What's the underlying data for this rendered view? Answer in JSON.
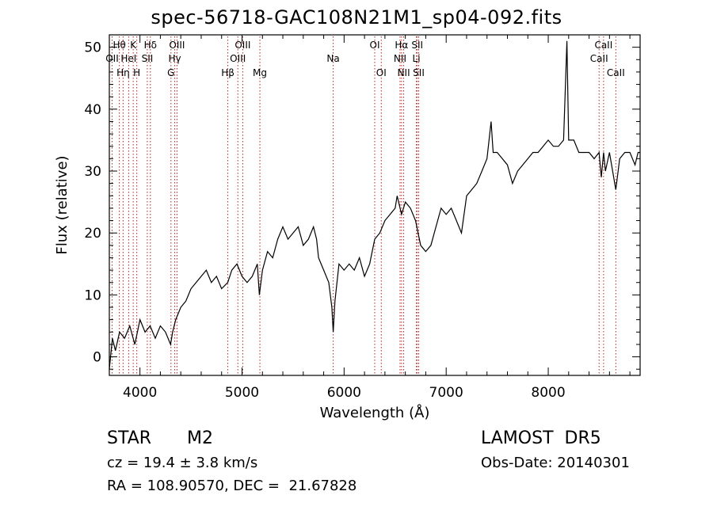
{
  "figure": {
    "title": "spec-56718-GAC108N21M1_sp04-092.fits",
    "info_left": {
      "class_label": "STAR",
      "subclass": "M2",
      "cz_text": "cz = 19.4 ± 3.8 km/s",
      "coords_text": "RA = 108.90570, DEC =  21.67828"
    },
    "info_right": {
      "survey": "LAMOST  DR5",
      "obs_date": "Obs-Date: 20140301"
    }
  },
  "chart_data": {
    "type": "line",
    "xlabel": "Wavelength (Å)",
    "ylabel": "Flux (relative)",
    "xlim": [
      3700,
      8900
    ],
    "ylim": [
      -3,
      52
    ],
    "xticks": [
      4000,
      5000,
      6000,
      7000,
      8000
    ],
    "yticks": [
      0,
      10,
      20,
      30,
      40,
      50
    ],
    "grid": false,
    "line_color": "#000000",
    "marker_color": "#b22222",
    "spectrum": {
      "x": [
        3700,
        3730,
        3760,
        3800,
        3850,
        3900,
        3950,
        4000,
        4050,
        4100,
        4150,
        4200,
        4250,
        4300,
        4320,
        4350,
        4400,
        4450,
        4500,
        4550,
        4600,
        4650,
        4700,
        4750,
        4800,
        4860,
        4900,
        4950,
        5000,
        5050,
        5100,
        5150,
        5170,
        5200,
        5250,
        5300,
        5350,
        5400,
        5450,
        5500,
        5550,
        5600,
        5650,
        5700,
        5730,
        5750,
        5800,
        5850,
        5880,
        5893,
        5910,
        5950,
        6000,
        6050,
        6100,
        6150,
        6200,
        6250,
        6300,
        6350,
        6400,
        6450,
        6500,
        6520,
        6563,
        6600,
        6650,
        6700,
        6750,
        6800,
        6850,
        6900,
        6950,
        7000,
        7050,
        7100,
        7150,
        7200,
        7250,
        7300,
        7350,
        7400,
        7440,
        7460,
        7500,
        7550,
        7600,
        7650,
        7700,
        7750,
        7800,
        7850,
        7900,
        7950,
        8000,
        8050,
        8100,
        8150,
        8183,
        8200,
        8250,
        8300,
        8350,
        8400,
        8450,
        8498,
        8520,
        8542,
        8560,
        8600,
        8662,
        8700,
        8750,
        8800,
        8850,
        8880,
        8900
      ],
      "y": [
        -2,
        3,
        1,
        4,
        3,
        5,
        2,
        6,
        4,
        5,
        3,
        5,
        4,
        2,
        4,
        6,
        8,
        9,
        11,
        12,
        13,
        14,
        12,
        13,
        11,
        12,
        14,
        15,
        13,
        12,
        13,
        15,
        10,
        14,
        17,
        16,
        19,
        21,
        19,
        20,
        21,
        18,
        19,
        21,
        19,
        16,
        14,
        12,
        8,
        4,
        9,
        15,
        14,
        15,
        14,
        16,
        13,
        15,
        19,
        20,
        22,
        23,
        24,
        26,
        23,
        25,
        24,
        22,
        18,
        17,
        18,
        21,
        24,
        23,
        24,
        22,
        20,
        26,
        27,
        28,
        30,
        32,
        38,
        33,
        33,
        32,
        31,
        28,
        30,
        31,
        32,
        33,
        33,
        34,
        35,
        34,
        34,
        35,
        51,
        35,
        35,
        33,
        33,
        33,
        32,
        33,
        29,
        33,
        30,
        33,
        27,
        32,
        33,
        33,
        31,
        33,
        33
      ]
    },
    "lines": [
      {
        "wl": 3727,
        "label": "OII",
        "row": 1
      },
      {
        "wl": 3798,
        "label": "Hθ",
        "row": 0
      },
      {
        "wl": 3835,
        "label": "Hη",
        "row": 2
      },
      {
        "wl": 3889,
        "label": "HeI",
        "row": 1
      },
      {
        "wl": 3934,
        "label": "K",
        "row": 0
      },
      {
        "wl": 3969,
        "label": "H",
        "row": 2
      },
      {
        "wl": 4102,
        "label": "Hδ",
        "row": 0
      },
      {
        "wl": 4072,
        "label": "SII",
        "row": 1
      },
      {
        "wl": 4304,
        "label": "G",
        "row": 2
      },
      {
        "wl": 4341,
        "label": "Hγ",
        "row": 1
      },
      {
        "wl": 4363,
        "label": "OIII",
        "row": 0
      },
      {
        "wl": 4861,
        "label": "Hβ",
        "row": 2
      },
      {
        "wl": 4959,
        "label": "OIII",
        "row": 1
      },
      {
        "wl": 5007,
        "label": "OIII",
        "row": 0
      },
      {
        "wl": 5175,
        "label": "Mg",
        "row": 2
      },
      {
        "wl": 5893,
        "label": "Na",
        "row": 1
      },
      {
        "wl": 6300,
        "label": "OI",
        "row": 0
      },
      {
        "wl": 6364,
        "label": "OI",
        "row": 2
      },
      {
        "wl": 6548,
        "label": "NII",
        "row": 1
      },
      {
        "wl": 6563,
        "label": "Hα",
        "row": 0
      },
      {
        "wl": 6584,
        "label": "NII",
        "row": 2
      },
      {
        "wl": 6708,
        "label": "Li",
        "row": 1
      },
      {
        "wl": 6717,
        "label": "SII",
        "row": 0
      },
      {
        "wl": 6731,
        "label": "SII",
        "row": 2
      },
      {
        "wl": 8498,
        "label": "CaII",
        "row": 1
      },
      {
        "wl": 8542,
        "label": "CaII",
        "row": 0
      },
      {
        "wl": 8662,
        "label": "CaII",
        "row": 2
      }
    ]
  }
}
